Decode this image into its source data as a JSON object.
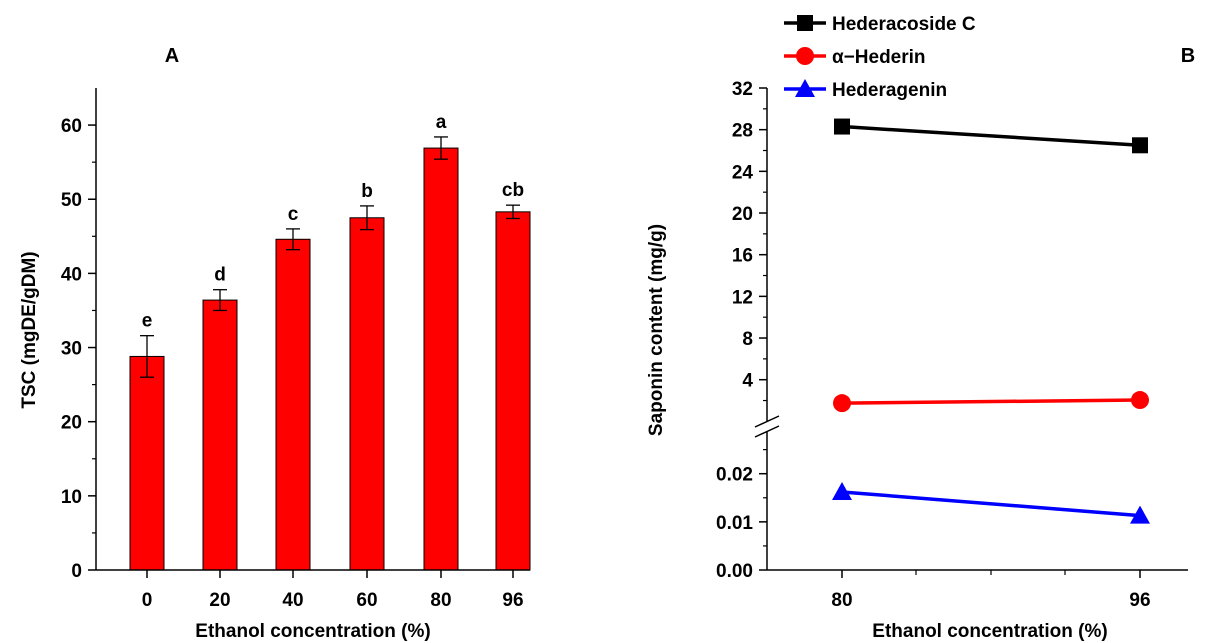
{
  "chart_data": [
    {
      "panel": "A",
      "type": "bar",
      "ylabel": "TSC (mgDE/gDM)",
      "xlabel": "Ethanol concentration (%)",
      "categories": [
        "0",
        "20",
        "40",
        "60",
        "80",
        "96"
      ],
      "values": [
        28.8,
        36.4,
        44.6,
        47.5,
        56.9,
        48.3
      ],
      "errors": [
        2.8,
        1.4,
        1.4,
        1.6,
        1.5,
        0.9
      ],
      "significance": [
        "e",
        "d",
        "c",
        "b",
        "a",
        "cb"
      ],
      "yticks": [
        "0",
        "10",
        "20",
        "30",
        "40",
        "50",
        "60"
      ],
      "ylim": [
        0,
        65
      ],
      "bar_color": "#ff0000"
    },
    {
      "panel": "B",
      "type": "line",
      "ylabel": "Saponin content (mg/g)",
      "xlabel": "Ethanol concentration (%)",
      "x": [
        "80",
        "96"
      ],
      "axis_break": true,
      "upper_ylim": [
        0.9,
        32
      ],
      "upper_yticks": [
        "4",
        "8",
        "12",
        "16",
        "20",
        "24",
        "28",
        "32"
      ],
      "lower_ylim": [
        0,
        0.027
      ],
      "lower_yticks": [
        "0.00",
        "0.01",
        "0.02"
      ],
      "legend_position": "top",
      "series": [
        {
          "name": "Hederacoside C",
          "values": [
            28.3,
            26.5
          ],
          "segment": "upper",
          "marker": "square",
          "color": "#000000"
        },
        {
          "name": "α−Hederin",
          "values": [
            1.75,
            2.05
          ],
          "segment": "upper",
          "marker": "circle",
          "color": "#ff0000"
        },
        {
          "name": "Hederagenin",
          "values": [
            0.0162,
            0.0113
          ],
          "segment": "lower",
          "marker": "triangle",
          "color": "#0000ff"
        }
      ]
    }
  ]
}
